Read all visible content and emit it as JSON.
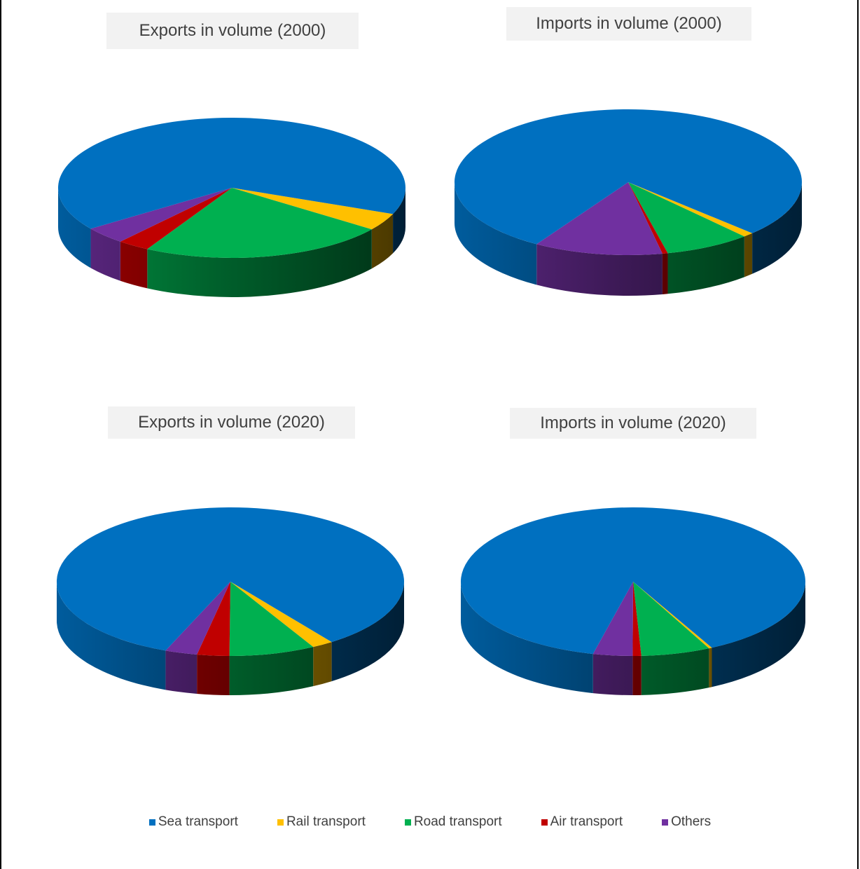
{
  "chart_data": [
    {
      "type": "pie",
      "title": "Exports in volume (2000)",
      "categories": [
        "Sea transport",
        "Rail transport",
        "Road transport",
        "Air transport",
        "Others"
      ],
      "values": [
        66,
        4,
        23,
        3,
        4
      ]
    },
    {
      "type": "pie",
      "title": "Imports in volume (2000)",
      "categories": [
        "Sea transport",
        "Rail transport",
        "Road transport",
        "Air transport",
        "Others"
      ],
      "values": [
        78.5,
        1,
        8,
        0.5,
        12
      ]
    },
    {
      "type": "pie",
      "title": "Exports in volume (2020)",
      "categories": [
        "Sea transport",
        "Rail transport",
        "Road transport",
        "Air transport",
        "Others"
      ],
      "values": [
        84,
        2,
        8,
        3,
        3
      ]
    },
    {
      "type": "pie",
      "title": "Imports in volume (2020)",
      "categories": [
        "Sea transport",
        "Rail transport",
        "Road transport",
        "Air transport",
        "Others"
      ],
      "values": [
        88.7,
        0.3,
        6.5,
        0.8,
        3.7
      ]
    }
  ],
  "legend": {
    "placement": "bottom",
    "items": [
      {
        "label": "Sea transport",
        "color": "#0070c0"
      },
      {
        "label": "Rail transport",
        "color": "#ffc000"
      },
      {
        "label": "Road transport",
        "color": "#00b050"
      },
      {
        "label": "Air transport",
        "color": "#c00000"
      },
      {
        "label": "Others",
        "color": "#7030a0"
      }
    ]
  }
}
